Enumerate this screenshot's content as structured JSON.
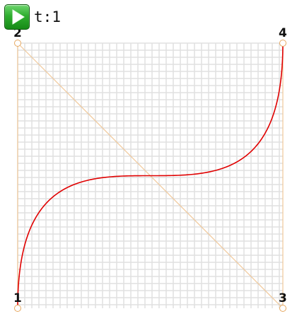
{
  "toolbar": {
    "play_icon": "play-icon",
    "t_label": "t",
    "t_value": "1"
  },
  "colors": {
    "curve": "#e00000",
    "control_lines": "#f0c89a",
    "grid": "#e0e0e0",
    "handle_stroke": "#e6a860",
    "play_green": "#2fae2f"
  },
  "chart_data": {
    "type": "line",
    "grid": true,
    "xlim": [
      0,
      1
    ],
    "ylim": [
      0,
      1
    ],
    "control_points": [
      {
        "label": "1",
        "x": 0,
        "y": 0
      },
      {
        "label": "2",
        "x": 0,
        "y": 1
      },
      {
        "label": "3",
        "x": 1,
        "y": 0
      },
      {
        "label": "4",
        "x": 1,
        "y": 1
      }
    ],
    "t": 1
  }
}
